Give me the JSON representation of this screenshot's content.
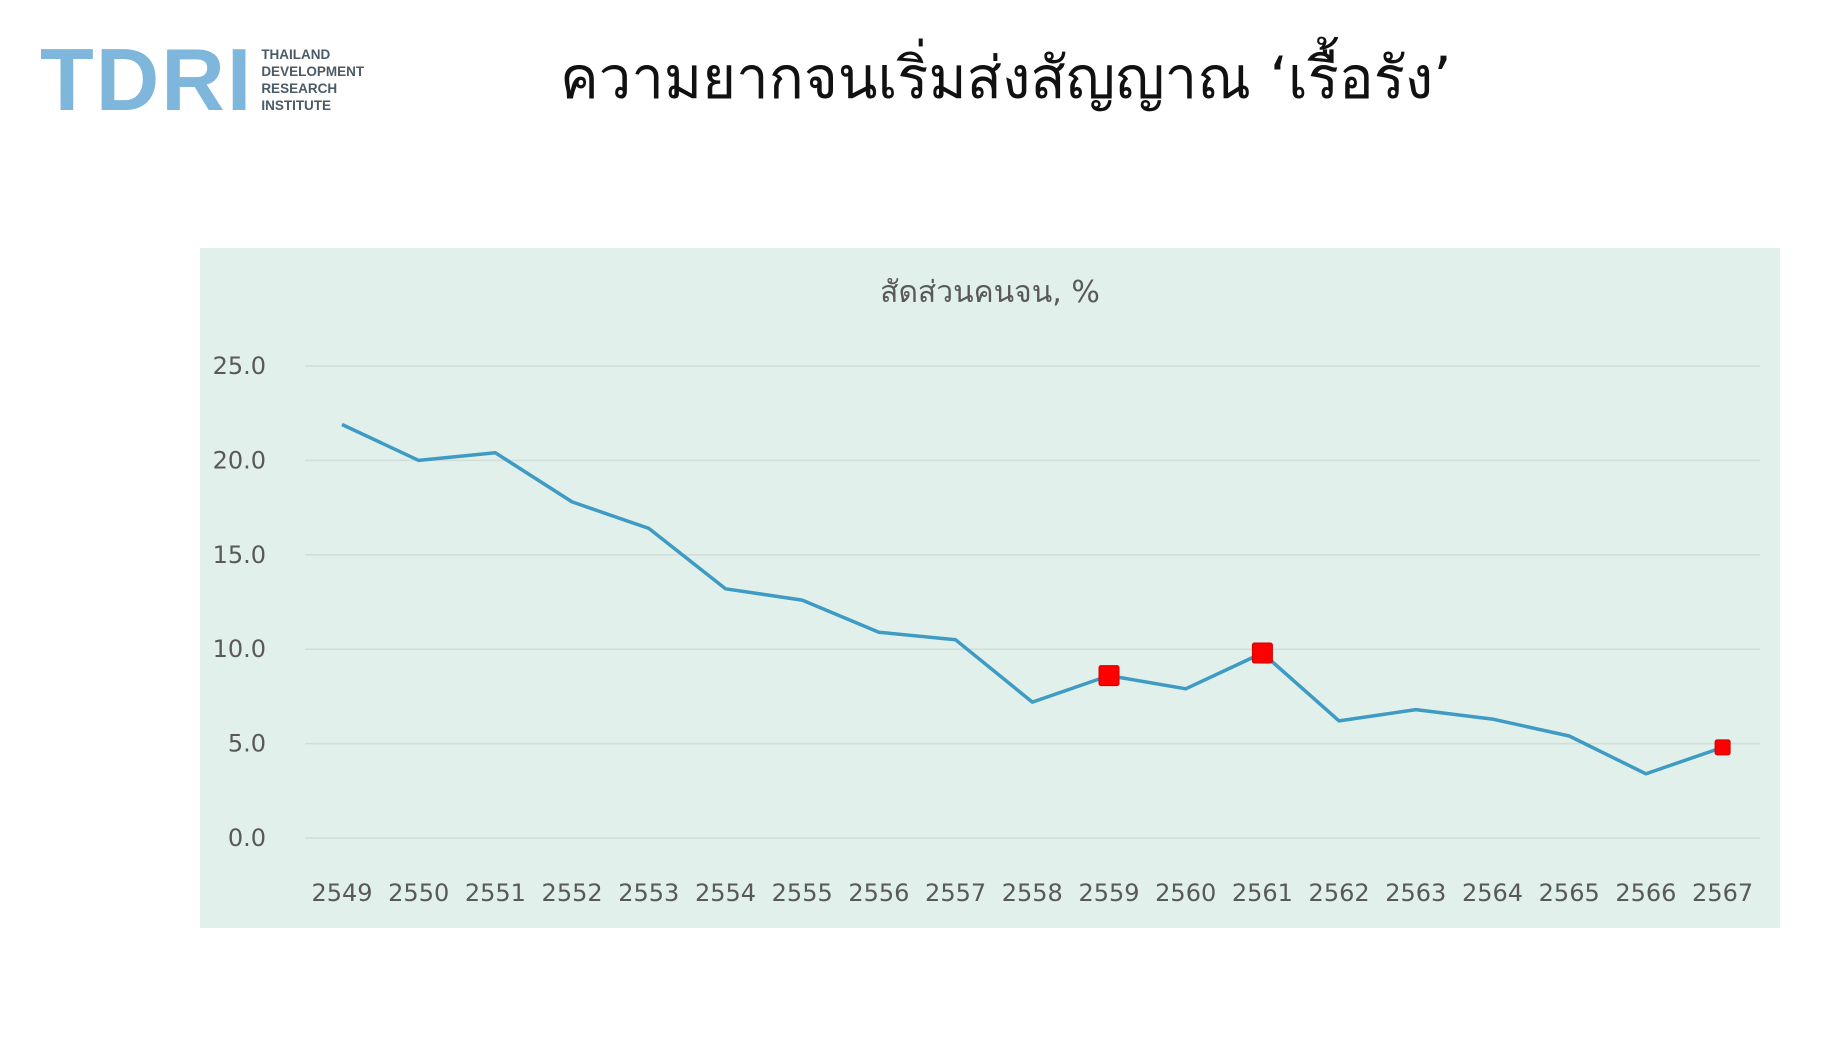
{
  "logo": {
    "mark": "TDRI",
    "lines": [
      "THAILAND",
      "DEVELOPMENT",
      "RESEARCH",
      "INSTITUTE"
    ],
    "color": "#7fb6dc"
  },
  "slide": {
    "title": "ความยากจนเริ่มส่งสัญญาณ ‘เรื้อรัง’"
  },
  "chart_data": {
    "type": "line",
    "title": "สัดส่วนคนจน, %",
    "xlabel": "",
    "ylabel": "",
    "x": [
      "2549",
      "2550",
      "2551",
      "2552",
      "2553",
      "2554",
      "2555",
      "2556",
      "2557",
      "2558",
      "2559",
      "2560",
      "2561",
      "2562",
      "2563",
      "2564",
      "2565",
      "2566",
      "2567"
    ],
    "series": [
      {
        "values": [
          21.9,
          20.0,
          20.4,
          17.8,
          16.4,
          13.2,
          12.6,
          10.9,
          10.5,
          7.2,
          8.6,
          7.9,
          9.8,
          6.2,
          6.8,
          6.3,
          5.4,
          3.4,
          4.8
        ],
        "color": "#3e9bc4"
      }
    ],
    "highlighted_points": [
      "2559",
      "2561",
      "2567"
    ],
    "highlight_color": "#ff0000",
    "ylim": [
      0,
      25
    ],
    "yticks": [
      "0.0",
      "5.0",
      "10.0",
      "15.0",
      "20.0",
      "25.0"
    ],
    "grid": true,
    "legend": "none",
    "background": "#e2f0eb"
  }
}
